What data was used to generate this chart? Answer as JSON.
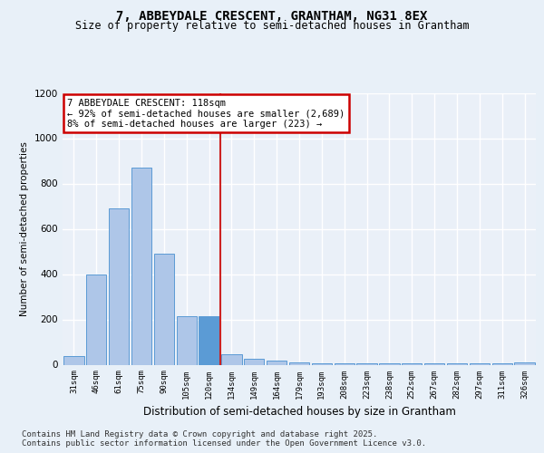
{
  "title1": "7, ABBEYDALE CRESCENT, GRANTHAM, NG31 8EX",
  "title2": "Size of property relative to semi-detached houses in Grantham",
  "xlabel": "Distribution of semi-detached houses by size in Grantham",
  "ylabel": "Number of semi-detached properties",
  "categories": [
    "31sqm",
    "46sqm",
    "61sqm",
    "75sqm",
    "90sqm",
    "105sqm",
    "120sqm",
    "134sqm",
    "149sqm",
    "164sqm",
    "179sqm",
    "193sqm",
    "208sqm",
    "223sqm",
    "238sqm",
    "252sqm",
    "267sqm",
    "282sqm",
    "297sqm",
    "311sqm",
    "326sqm"
  ],
  "values": [
    40,
    400,
    690,
    870,
    490,
    215,
    215,
    45,
    25,
    20,
    10,
    5,
    5,
    5,
    5,
    5,
    5,
    5,
    5,
    5,
    10
  ],
  "bar_colors": [
    "#aec6e8",
    "#aec6e8",
    "#aec6e8",
    "#aec6e8",
    "#aec6e8",
    "#aec6e8",
    "#5b9bd5",
    "#aec6e8",
    "#aec6e8",
    "#aec6e8",
    "#aec6e8",
    "#aec6e8",
    "#aec6e8",
    "#aec6e8",
    "#aec6e8",
    "#aec6e8",
    "#aec6e8",
    "#aec6e8",
    "#aec6e8",
    "#aec6e8",
    "#aec6e8"
  ],
  "highlight_index": 6,
  "annotation_title": "7 ABBEYDALE CRESCENT: 118sqm",
  "annotation_line1": "← 92% of semi-detached houses are smaller (2,689)",
  "annotation_line2": "8% of semi-detached houses are larger (223) →",
  "footer1": "Contains HM Land Registry data © Crown copyright and database right 2025.",
  "footer2": "Contains public sector information licensed under the Open Government Licence v3.0.",
  "ylim": [
    0,
    1200
  ],
  "bg_color": "#e8f0f8",
  "plot_bg_color": "#eaf0f8",
  "annotation_box_color": "#ffffff",
  "annotation_border_color": "#cc0000",
  "grid_color": "#ffffff",
  "bar_edge_color": "#5b9bd5",
  "vline_color": "#cc2222"
}
